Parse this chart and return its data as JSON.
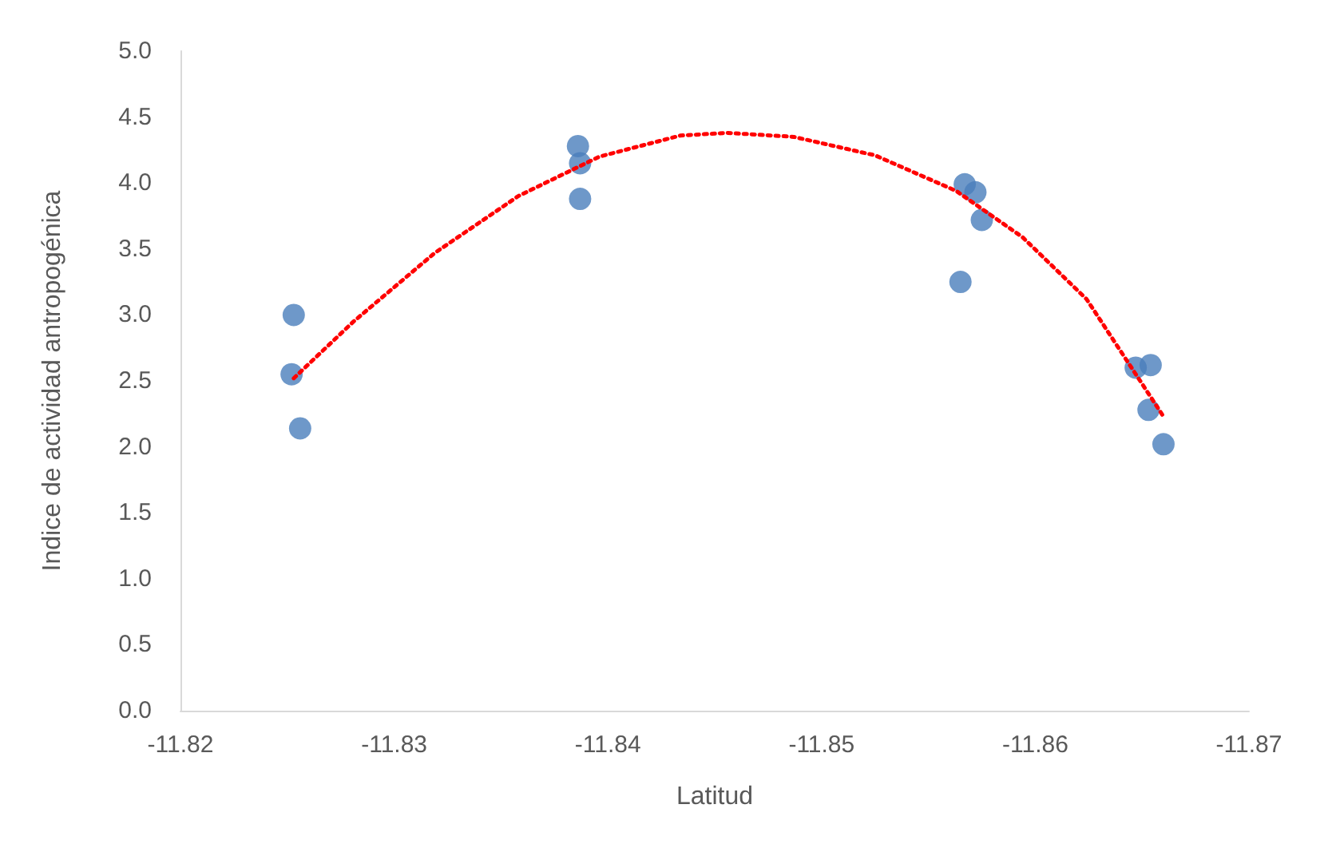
{
  "chart_data": {
    "type": "scatter",
    "xlabel": "Latitud",
    "ylabel": "Indice de actividad antropogénica",
    "xlim": [
      -11.82,
      -11.87
    ],
    "xticks": [
      -11.82,
      -11.83,
      -11.84,
      -11.85,
      -11.86,
      -11.87
    ],
    "ylim": [
      0,
      5
    ],
    "yticks": [
      {
        "value": 0,
        "label": "0.0"
      },
      0.5,
      {
        "value": 1,
        "label": "1.0"
      },
      1.5,
      {
        "value": 2,
        "label": "2.0"
      },
      2.5,
      {
        "value": 3,
        "label": "3.0"
      },
      3.5,
      {
        "value": 4,
        "label": "4.0"
      },
      4.5,
      {
        "value": 5,
        "label": "5.0"
      }
    ],
    "grid": false,
    "marker": "circle",
    "series": [
      {
        "color": "#4a7ebb",
        "x": [
          -11.8253,
          -11.8252,
          -11.8256,
          -11.8386,
          -11.8387,
          -11.8387,
          -11.8567,
          -11.8572,
          -11.8575,
          -11.8565,
          -11.8647,
          -11.8654,
          -11.8653,
          -11.866
        ],
        "values": [
          3.0,
          2.55,
          2.14,
          4.28,
          4.15,
          3.88,
          3.99,
          3.93,
          3.72,
          3.25,
          2.6,
          2.62,
          2.28,
          2.02
        ]
      },
      {
        "type": "line",
        "color": "#ff0000",
        "line_style": "dotted",
        "marker": "none",
        "x": [
          -11.8253,
          -11.8281,
          -11.8319,
          -11.8358,
          -11.8396,
          -11.8434,
          -11.8456,
          -11.8487,
          -11.8525,
          -11.8563,
          -11.8594,
          -11.8624,
          -11.866
        ],
        "values": [
          2.52,
          2.95,
          3.47,
          3.9,
          4.2,
          4.36,
          4.38,
          4.35,
          4.21,
          3.94,
          3.59,
          3.12,
          2.23
        ]
      }
    ]
  }
}
